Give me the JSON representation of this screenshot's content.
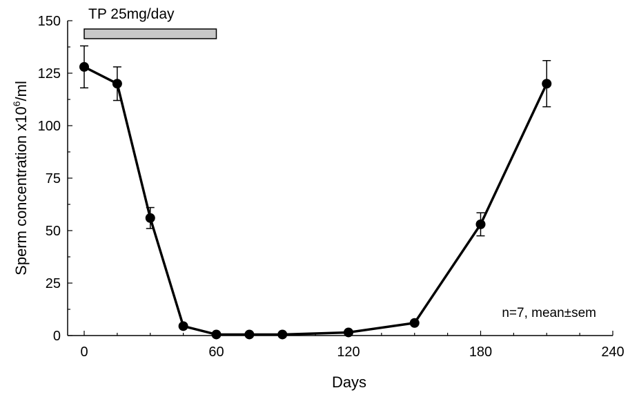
{
  "chart_data": {
    "type": "line",
    "xlabel": "Days",
    "ylabel": "Sperm concentration x10",
    "ylabel_sup": "6",
    "ylabel_suffix": "/ml",
    "xlim": [
      0,
      240
    ],
    "ylim": [
      0,
      150
    ],
    "x_ticks": [
      0,
      60,
      120,
      180,
      240
    ],
    "y_ticks": [
      0,
      25,
      50,
      75,
      100,
      125,
      150
    ],
    "grid": false,
    "series": [
      {
        "x": [
          0,
          15,
          30,
          45,
          60,
          75,
          90,
          120,
          150,
          180,
          210
        ],
        "y": [
          128,
          120,
          56,
          4.5,
          0.5,
          0.5,
          0.5,
          1.5,
          6,
          53,
          120
        ],
        "err": [
          10,
          8,
          5,
          0,
          0,
          0,
          0,
          0,
          0,
          5.5,
          11
        ]
      }
    ],
    "annotations": {
      "treatment_label": "TP 25mg/day",
      "treatment_start": 0,
      "treatment_end": 60,
      "note": "n=7, mean±sem"
    }
  }
}
